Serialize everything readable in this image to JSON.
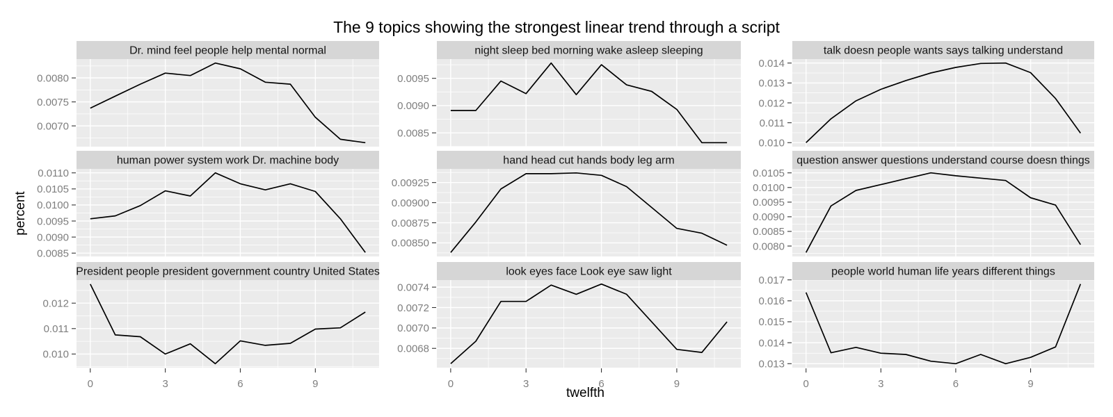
{
  "page": {
    "background": "#FFFFFF"
  },
  "chart_data": {
    "type": "line",
    "layout": "3x3-facet-grid",
    "title": "The 9 topics showing the strongest linear trend through a script",
    "xlabel": "twelfth",
    "ylabel": "percent",
    "grid": true,
    "legend": "none",
    "x": [
      0,
      1,
      2,
      3,
      4,
      5,
      6,
      7,
      8,
      9,
      10,
      11
    ],
    "x_ticks": [
      0,
      3,
      6,
      9
    ],
    "x_minor_ticks": [
      1.5,
      4.5,
      7.5,
      10.5
    ],
    "xlim": [
      -0.55,
      11.55
    ],
    "colors": {
      "panel_bg": "#EBEBEB",
      "strip_bg": "#D6D6D6",
      "gridline": "#FFFFFF",
      "series_line": "#000000",
      "tick_label": "#7E7E7E",
      "tick_mark": "#333333",
      "strip_text": "#151515",
      "title_text": "#000000"
    },
    "facets": [
      {
        "title": "Dr. mind feel people help mental normal",
        "values": [
          0.00737,
          0.00762,
          0.00787,
          0.0081,
          0.00805,
          0.00831,
          0.00819,
          0.00791,
          0.00787,
          0.00718,
          0.00672,
          0.00665
        ],
        "y_ticks": [
          0.007,
          0.0075,
          0.008
        ],
        "y_tick_labels": [
          "0.0070",
          "0.0075",
          "0.0080"
        ],
        "ylim": [
          0.006567,
          0.008393
        ]
      },
      {
        "title": "night sleep bed morning wake asleep sleeping",
        "values": [
          0.00891,
          0.00891,
          0.00945,
          0.00922,
          0.00978,
          0.0092,
          0.00975,
          0.00938,
          0.00926,
          0.00893,
          0.00832,
          0.00832
        ],
        "y_ticks": [
          0.0085,
          0.009,
          0.0095
        ],
        "y_tick_labels": [
          "0.0085",
          "0.0090",
          "0.0095"
        ],
        "ylim": [
          0.008247,
          0.009853
        ]
      },
      {
        "title": "talk doesn people wants says talking understand",
        "values": [
          0.01,
          0.0112,
          0.0121,
          0.01268,
          0.01312,
          0.0135,
          0.01378,
          0.01398,
          0.014,
          0.01352,
          0.01222,
          0.01048
        ],
        "y_ticks": [
          0.01,
          0.011,
          0.012,
          0.013,
          0.014
        ],
        "y_tick_labels": [
          "0.010",
          "0.011",
          "0.012",
          "0.013",
          "0.014"
        ],
        "ylim": [
          0.0098,
          0.0142
        ]
      },
      {
        "title": "human power system work Dr. machine body",
        "values": [
          0.00957,
          0.00966,
          0.00998,
          0.01044,
          0.01028,
          0.011,
          0.01066,
          0.01047,
          0.01066,
          0.01042,
          0.00957,
          0.00852
        ],
        "y_ticks": [
          0.0085,
          0.009,
          0.0095,
          0.01,
          0.0105,
          0.011
        ],
        "y_tick_labels": [
          "0.0085",
          "0.0090",
          "0.0095",
          "0.0100",
          "0.0105",
          "0.0110"
        ],
        "ylim": [
          0.008396,
          0.011124
        ]
      },
      {
        "title": "hand head cut hands body leg arm",
        "values": [
          0.00838,
          0.00876,
          0.00917,
          0.00936,
          0.00936,
          0.00937,
          0.00934,
          0.0092,
          0.00894,
          0.00868,
          0.00862,
          0.00847
        ],
        "y_ticks": [
          0.0085,
          0.00875,
          0.009,
          0.00925
        ],
        "y_tick_labels": [
          "0.00850",
          "0.00875",
          "0.00900",
          "0.00925"
        ],
        "ylim": [
          0.008331,
          0.00942
        ]
      },
      {
        "title": "question answer questions understand course doesn things",
        "values": [
          0.00778,
          0.00937,
          0.0099,
          0.0101,
          0.0103,
          0.0105,
          0.0104,
          0.01032,
          0.01024,
          0.00965,
          0.0094,
          0.00805
        ],
        "y_ticks": [
          0.008,
          0.0085,
          0.009,
          0.0095,
          0.01,
          0.0105
        ],
        "y_tick_labels": [
          "0.0080",
          "0.0085",
          "0.0090",
          "0.0095",
          "0.0100",
          "0.0105"
        ],
        "ylim": [
          0.007644,
          0.010636
        ]
      },
      {
        "title": "President people president government country United States",
        "values": [
          0.01275,
          0.01075,
          0.01068,
          0.01,
          0.0104,
          0.00962,
          0.01052,
          0.01034,
          0.01042,
          0.01098,
          0.01103,
          0.01165
        ],
        "y_ticks": [
          0.01,
          0.011,
          0.012
        ],
        "y_tick_labels": [
          "0.010",
          "0.011",
          "0.012"
        ],
        "ylim": [
          0.009464,
          0.012907
        ]
      },
      {
        "title": "look eyes face Look eye saw light",
        "values": [
          0.00665,
          0.00687,
          0.00726,
          0.00726,
          0.00742,
          0.00733,
          0.00743,
          0.00733,
          0.00706,
          0.00679,
          0.00676,
          0.00706
        ],
        "y_ticks": [
          0.0068,
          0.007,
          0.0072,
          0.0074
        ],
        "y_tick_labels": [
          "0.0068",
          "0.0070",
          "0.0072",
          "0.0074"
        ],
        "ylim": [
          0.006611,
          0.007469
        ]
      },
      {
        "title": "people world human life years different things",
        "values": [
          0.0164,
          0.01352,
          0.01378,
          0.0135,
          0.01344,
          0.01312,
          0.013,
          0.01344,
          0.013,
          0.0133,
          0.0138,
          0.0168
        ],
        "y_ticks": [
          0.013,
          0.014,
          0.015,
          0.016,
          0.017
        ],
        "y_tick_labels": [
          "0.013",
          "0.014",
          "0.015",
          "0.016",
          "0.017"
        ],
        "ylim": [
          0.01281,
          0.01699
        ]
      }
    ]
  }
}
